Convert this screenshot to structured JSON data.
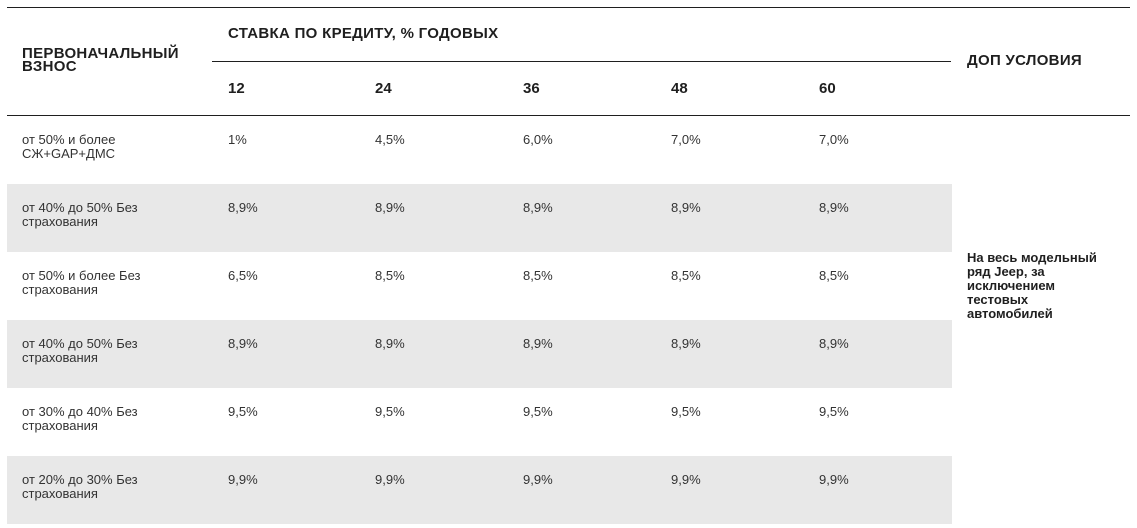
{
  "table": {
    "header_down_payment": "ПЕРВОНАЧАЛЬНЫЙ ВЗНОС",
    "header_rate": "СТАВКА ПО КРЕДИТУ, % ГОДОВЫХ",
    "header_extra": "ДОП УСЛОВИЯ",
    "terms": [
      "12",
      "24",
      "36",
      "48",
      "60"
    ],
    "rows": [
      {
        "label": "от 50% и более СЖ+GAP+ДМС",
        "rates": [
          "1%",
          "4,5%",
          "6,0%",
          "7,0%",
          "7,0%"
        ],
        "shaded": false
      },
      {
        "label": "от 40% до 50% Без страхования",
        "rates": [
          "8,9%",
          "8,9%",
          "8,9%",
          "8,9%",
          "8,9%"
        ],
        "shaded": true
      },
      {
        "label": "от 50% и более Без страхования",
        "rates": [
          "6,5%",
          "8,5%",
          "8,5%",
          "8,5%",
          "8,5%"
        ],
        "shaded": false
      },
      {
        "label": "от 40% до 50% Без страхования",
        "rates": [
          "8,9%",
          "8,9%",
          "8,9%",
          "8,9%",
          "8,9%"
        ],
        "shaded": true
      },
      {
        "label": "от 30% до 40% Без страхования",
        "rates": [
          "9,5%",
          "9,5%",
          "9,5%",
          "9,5%",
          "9,5%"
        ],
        "shaded": false
      },
      {
        "label": "от 20% до 30% Без страхования",
        "rates": [
          "9,9%",
          "9,9%",
          "9,9%",
          "9,9%",
          "9,9%"
        ],
        "shaded": true
      }
    ],
    "extra_conditions": "На весь модельный ряд Jeep, за исключением тестовых автомобилей",
    "shade_color": "#e8e8e8"
  }
}
